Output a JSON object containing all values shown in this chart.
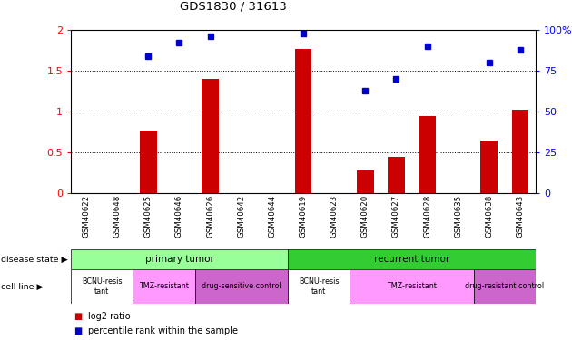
{
  "title": "GDS1830 / 31613",
  "samples": [
    "GSM40622",
    "GSM40648",
    "GSM40625",
    "GSM40646",
    "GSM40626",
    "GSM40642",
    "GSM40644",
    "GSM40619",
    "GSM40623",
    "GSM40620",
    "GSM40627",
    "GSM40628",
    "GSM40635",
    "GSM40638",
    "GSM40643"
  ],
  "log2_ratio": [
    0,
    0,
    0.77,
    0,
    1.4,
    0,
    0,
    1.77,
    0,
    0.28,
    0.44,
    0.95,
    0,
    0.65,
    1.02
  ],
  "percentile_rank": [
    null,
    null,
    84,
    92,
    96,
    null,
    null,
    98,
    null,
    63,
    70,
    90,
    null,
    80,
    88
  ],
  "bar_color": "#cc0000",
  "dot_color": "#0000cc",
  "ylim_left": [
    0,
    2
  ],
  "ylim_right": [
    0,
    100
  ],
  "yticks_left": [
    0,
    0.5,
    1.0,
    1.5,
    2.0
  ],
  "yticks_right": [
    0,
    25,
    50,
    75,
    100
  ],
  "ytick_labels_left": [
    "0",
    "0.5",
    "1",
    "1.5",
    "2"
  ],
  "ytick_labels_right": [
    "0",
    "25",
    "50",
    "75",
    "100%"
  ],
  "disease_state_groups": [
    {
      "label": "primary tumor",
      "start": 0,
      "end": 7,
      "color": "#99ff99"
    },
    {
      "label": "recurrent tumor",
      "start": 7,
      "end": 15,
      "color": "#33cc33"
    }
  ],
  "cell_line_groups": [
    {
      "label": "BCNU-resis\ntant",
      "start": 0,
      "end": 2,
      "color": "#ffffff"
    },
    {
      "label": "TMZ-resistant",
      "start": 2,
      "end": 4,
      "color": "#ff99ff"
    },
    {
      "label": "drug-sensitive control",
      "start": 4,
      "end": 7,
      "color": "#cc66cc"
    },
    {
      "label": "BCNU-resis\ntant",
      "start": 7,
      "end": 9,
      "color": "#ffffff"
    },
    {
      "label": "TMZ-resistant",
      "start": 9,
      "end": 13,
      "color": "#ff99ff"
    },
    {
      "label": "drug-resistant control",
      "start": 13,
      "end": 15,
      "color": "#cc66cc"
    }
  ],
  "legend_log2_color": "#cc0000",
  "legend_pct_color": "#0000cc",
  "disease_state_label": "disease state",
  "cell_line_label": "cell line",
  "legend_log2_label": "log2 ratio",
  "legend_pct_label": "percentile rank within the sample"
}
